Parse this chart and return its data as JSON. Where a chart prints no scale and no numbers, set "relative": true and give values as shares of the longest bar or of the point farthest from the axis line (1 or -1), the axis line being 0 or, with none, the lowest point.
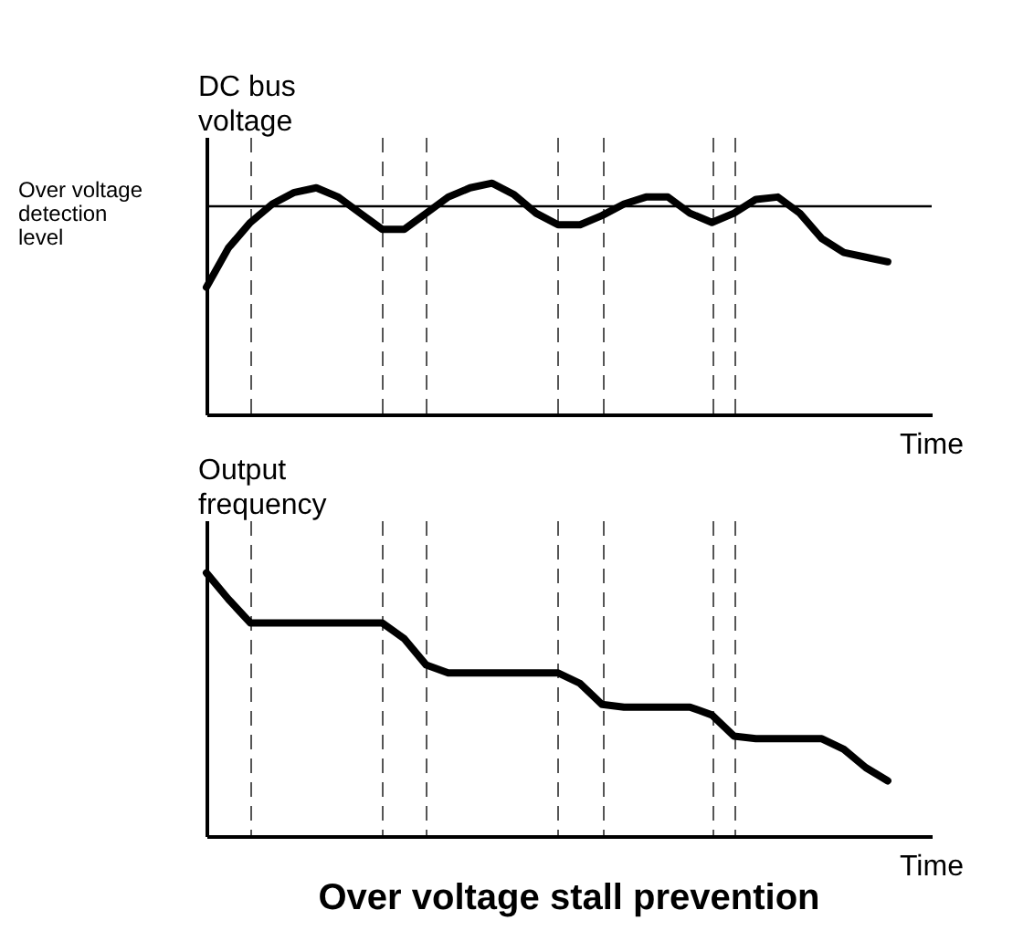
{
  "chart_data": [
    {
      "type": "line",
      "ylabel": "DC bus voltage",
      "xlabel": "Time",
      "relative": true,
      "categories": [
        null,
        null,
        null,
        null,
        null,
        null,
        null,
        null,
        null,
        null,
        null,
        null,
        null,
        null,
        null,
        null,
        null,
        null,
        null,
        null,
        null,
        null,
        null,
        null,
        null,
        null,
        null,
        null,
        null,
        null,
        null,
        null,
        null,
        null
      ],
      "series": [
        {
          "color": "#000000",
          "values": [
            0.55,
            0.72,
            0.83,
            0.91,
            0.96,
            0.98,
            0.94,
            0.87,
            0.8,
            0.8,
            0.87,
            0.94,
            0.98,
            1.0,
            0.95,
            0.87,
            0.82,
            0.82,
            0.86,
            0.91,
            0.94,
            0.94,
            0.87,
            0.83,
            0.87,
            0.93,
            0.94,
            0.87,
            0.76,
            0.7,
            0.68,
            0.66,
            null,
            null
          ]
        }
      ],
      "grid": "x",
      "ref_lines": [
        {
          "axis": "y",
          "value": 0.9,
          "label": "Over voltage detection level",
          "color": "#000000",
          "line_style": "solid"
        }
      ]
    },
    {
      "type": "line",
      "title": "Over voltage stall prevention",
      "ylabel": "Output frequency",
      "xlabel": "Time",
      "relative": true,
      "categories": [
        null,
        null,
        null,
        null,
        null,
        null,
        null,
        null,
        null,
        null,
        null,
        null,
        null,
        null,
        null,
        null,
        null,
        null,
        null,
        null,
        null,
        null,
        null,
        null,
        null,
        null,
        null,
        null,
        null,
        null,
        null,
        null,
        null,
        null
      ],
      "series": [
        {
          "color": "#000000",
          "values": [
            1.0,
            0.9,
            0.81,
            0.81,
            0.81,
            0.81,
            0.81,
            0.81,
            0.81,
            0.75,
            0.65,
            0.62,
            0.62,
            0.62,
            0.62,
            0.62,
            0.62,
            0.58,
            0.5,
            0.49,
            0.49,
            0.49,
            0.49,
            0.46,
            0.38,
            0.37,
            0.37,
            0.37,
            0.37,
            0.33,
            0.26,
            0.21,
            null,
            null
          ]
        }
      ],
      "grid": "x"
    }
  ]
}
